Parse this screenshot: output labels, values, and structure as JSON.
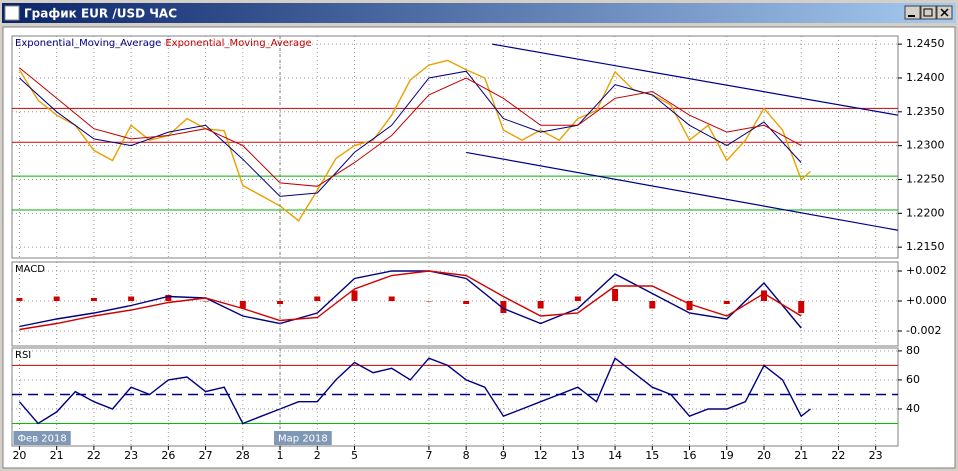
{
  "window": {
    "title": "График EUR /USD ЧАС"
  },
  "chart_data": [
    {
      "type": "line",
      "ylim": [
        1.2134,
        1.2462
      ],
      "yticks": [
        {
          "value": 1.215,
          "label": "1.2150"
        },
        {
          "value": 1.22,
          "label": "1.2200"
        },
        {
          "value": 1.225,
          "label": "1.2250"
        },
        {
          "value": 1.23,
          "label": "1.2300"
        },
        {
          "value": 1.235,
          "label": "1.2350"
        },
        {
          "value": 1.24,
          "label": "1.2400"
        },
        {
          "value": 1.245,
          "label": "1.2450"
        }
      ],
      "series": [
        {
          "color": "#e8a200",
          "x": [
            0,
            0.5,
            1,
            1.5,
            2,
            2.5,
            3,
            3.5,
            4,
            4.5,
            5,
            5.5,
            6,
            6.5,
            7,
            7.5,
            8,
            8.5,
            9,
            9.5,
            10,
            10.5,
            11,
            11.5,
            12,
            12.5,
            13,
            13.5,
            14,
            14.5,
            15,
            15.5,
            16,
            16.5,
            17,
            17.5,
            18,
            18.5,
            19,
            19.5,
            20,
            20.5,
            21,
            21.25
          ],
          "values": [
            1.2412,
            1.2367,
            1.2345,
            1.233,
            1.2293,
            1.2278,
            1.233,
            1.2308,
            1.2315,
            1.234,
            1.2325,
            1.2322,
            1.2241,
            1.2226,
            1.2211,
            1.2189,
            1.2234,
            1.2281,
            1.23,
            1.2308,
            1.2345,
            1.2397,
            1.2419,
            1.2426,
            1.2412,
            1.24,
            1.2323,
            1.2308,
            1.2323,
            1.2308,
            1.234,
            1.2352,
            1.2409,
            1.2382,
            1.2375,
            1.236,
            1.2308,
            1.233,
            1.2278,
            1.2308,
            1.2355,
            1.2323,
            1.225,
            1.2262
          ]
        },
        {
          "name": "Exponential_Moving_Average",
          "color": "#000080",
          "x": [
            0,
            1,
            2,
            3,
            4,
            5,
            6,
            7,
            8,
            9,
            10,
            11,
            12,
            13,
            14,
            15,
            16,
            17,
            18,
            19,
            20,
            21
          ],
          "values": [
            1.24,
            1.235,
            1.231,
            1.23,
            1.232,
            1.233,
            1.228,
            1.2225,
            1.223,
            1.229,
            1.233,
            1.24,
            1.241,
            1.234,
            1.232,
            1.233,
            1.239,
            1.2375,
            1.233,
            1.23,
            1.2335,
            1.2275
          ]
        },
        {
          "name": "Exponential_Moving_Average",
          "color": "#c00000",
          "x": [
            0,
            1,
            2,
            3,
            4,
            5,
            6,
            7,
            8,
            9,
            10,
            11,
            12,
            13,
            14,
            15,
            16,
            17,
            18,
            19,
            20,
            21
          ],
          "values": [
            1.2415,
            1.237,
            1.2325,
            1.231,
            1.2315,
            1.2325,
            1.23,
            1.2245,
            1.224,
            1.2275,
            1.2315,
            1.2375,
            1.24,
            1.237,
            1.233,
            1.233,
            1.237,
            1.238,
            1.2345,
            1.232,
            1.233,
            1.23
          ]
        }
      ],
      "hlines": [
        {
          "value": 1.2355,
          "color": "#d00000"
        },
        {
          "value": 1.2305,
          "color": "#d00000"
        },
        {
          "value": 1.2255,
          "color": "#00b000"
        },
        {
          "value": 1.2205,
          "color": "#00b000"
        }
      ],
      "trendlines": [
        {
          "x": [
            12.7,
            23.6
          ],
          "y": [
            1.245,
            1.2345
          ],
          "color": "#00008b"
        },
        {
          "x": [
            12,
            23.6
          ],
          "y": [
            1.229,
            1.2175
          ],
          "color": "#00008b"
        }
      ]
    },
    {
      "type": "line",
      "title": "MACD",
      "ylim": [
        -0.003,
        0.0026
      ],
      "yticks": [
        {
          "value": -0.002,
          "label": "-0.002"
        },
        {
          "value": 0,
          "label": "+0.000"
        },
        {
          "value": 0.002,
          "label": "+0.002"
        }
      ],
      "series": [
        {
          "type": "bar",
          "color": "#d00000",
          "x": [
            0,
            1,
            2,
            3,
            4,
            5,
            6,
            7,
            8,
            9,
            10,
            11,
            12,
            13,
            14,
            15,
            16,
            17,
            18,
            19,
            20,
            21
          ],
          "values": [
            0.0002,
            0.0003,
            0.0002,
            0.0003,
            0.0004,
            0,
            -0.0005,
            -0.0002,
            0.0003,
            0.0007,
            0.0003,
            0,
            -0.0002,
            -0.0008,
            -0.0005,
            0.0003,
            0.0008,
            -0.0005,
            -0.0006,
            -0.0002,
            0.0007,
            -0.0008
          ]
        },
        {
          "color": "#000080",
          "x": [
            0,
            1,
            2,
            3,
            4,
            5,
            6,
            7,
            8,
            9,
            10,
            11,
            12,
            13,
            14,
            15,
            16,
            17,
            18,
            19,
            20,
            21
          ],
          "values": [
            -0.0017,
            -0.0012,
            -0.0008,
            -0.0003,
            0.0003,
            0.0002,
            -0.001,
            -0.0015,
            -0.0008,
            0.0015,
            0.002,
            0.002,
            0.0015,
            -0.0005,
            -0.0015,
            -0.0005,
            0.0018,
            0.0005,
            -0.0008,
            -0.0012,
            0.0012,
            -0.0018
          ]
        },
        {
          "color": "#d00000",
          "x": [
            0,
            1,
            2,
            3,
            4,
            5,
            6,
            7,
            8,
            9,
            10,
            11,
            12,
            13,
            14,
            15,
            16,
            17,
            18,
            19,
            20,
            21
          ],
          "values": [
            -0.0019,
            -0.0015,
            -0.001,
            -0.0006,
            -0.0001,
            0.0002,
            -0.0005,
            -0.0013,
            -0.0011,
            0.0008,
            0.0017,
            0.002,
            0.0017,
            0.0003,
            -0.001,
            -0.0008,
            0.001,
            0.001,
            -0.0002,
            -0.001,
            0.0005,
            -0.001
          ]
        }
      ]
    },
    {
      "type": "line",
      "title": "RSI",
      "ylim": [
        14.5,
        82
      ],
      "yticks": [
        40,
        60,
        80
      ],
      "xlim": [
        -0.2,
        23.6
      ],
      "xticks": [
        {
          "value": 0,
          "label": "20"
        },
        {
          "value": 1,
          "label": "21"
        },
        {
          "value": 2,
          "label": "22"
        },
        {
          "value": 3,
          "label": "23"
        },
        {
          "value": 4,
          "label": "26"
        },
        {
          "value": 5,
          "label": "27"
        },
        {
          "value": 6,
          "label": "28"
        },
        {
          "value": 7,
          "label": "1"
        },
        {
          "value": 8,
          "label": "2"
        },
        {
          "value": 9,
          "label": "5"
        },
        {
          "value": 11,
          "label": "7"
        },
        {
          "value": 12,
          "label": "8"
        },
        {
          "value": 13,
          "label": "9"
        },
        {
          "value": 14,
          "label": "12"
        },
        {
          "value": 15,
          "label": "13"
        },
        {
          "value": 16,
          "label": "14"
        },
        {
          "value": 17,
          "label": "15"
        },
        {
          "value": 18,
          "label": "16"
        },
        {
          "value": 19,
          "label": "19"
        },
        {
          "value": 20,
          "label": "20"
        },
        {
          "value": 21,
          "label": "21"
        },
        {
          "value": 22,
          "label": "22"
        },
        {
          "value": 23,
          "label": "23"
        }
      ],
      "period_labels": [
        {
          "value": 0,
          "label": "Фев 2018"
        },
        {
          "value": 7,
          "label": "Мар 2018"
        }
      ],
      "series": [
        {
          "color": "#000080",
          "x": [
            0,
            0.5,
            1,
            1.5,
            2,
            2.5,
            3,
            3.5,
            4,
            4.5,
            5,
            5.5,
            6,
            6.5,
            7,
            7.5,
            8,
            8.5,
            9,
            9.5,
            10,
            10.5,
            11,
            11.5,
            12,
            12.5,
            13,
            13.5,
            14,
            14.5,
            15,
            15.5,
            16,
            16.5,
            17,
            17.5,
            18,
            18.5,
            19,
            19.5,
            20,
            20.5,
            21,
            21.25
          ],
          "values": [
            45,
            30,
            38,
            52,
            45,
            40,
            55,
            50,
            60,
            62,
            52,
            55,
            30,
            35,
            40,
            45,
            45,
            60,
            72,
            65,
            68,
            60,
            75,
            70,
            60,
            55,
            35,
            40,
            45,
            50,
            55,
            45,
            75,
            65,
            55,
            50,
            35,
            40,
            40,
            45,
            70,
            60,
            35,
            40
          ]
        }
      ],
      "hlines": [
        {
          "value": 70,
          "color": "#d00000"
        },
        {
          "value": 50,
          "color": "#000080",
          "line_style": "dashed"
        },
        {
          "value": 30,
          "color": "#00c000"
        }
      ]
    }
  ]
}
